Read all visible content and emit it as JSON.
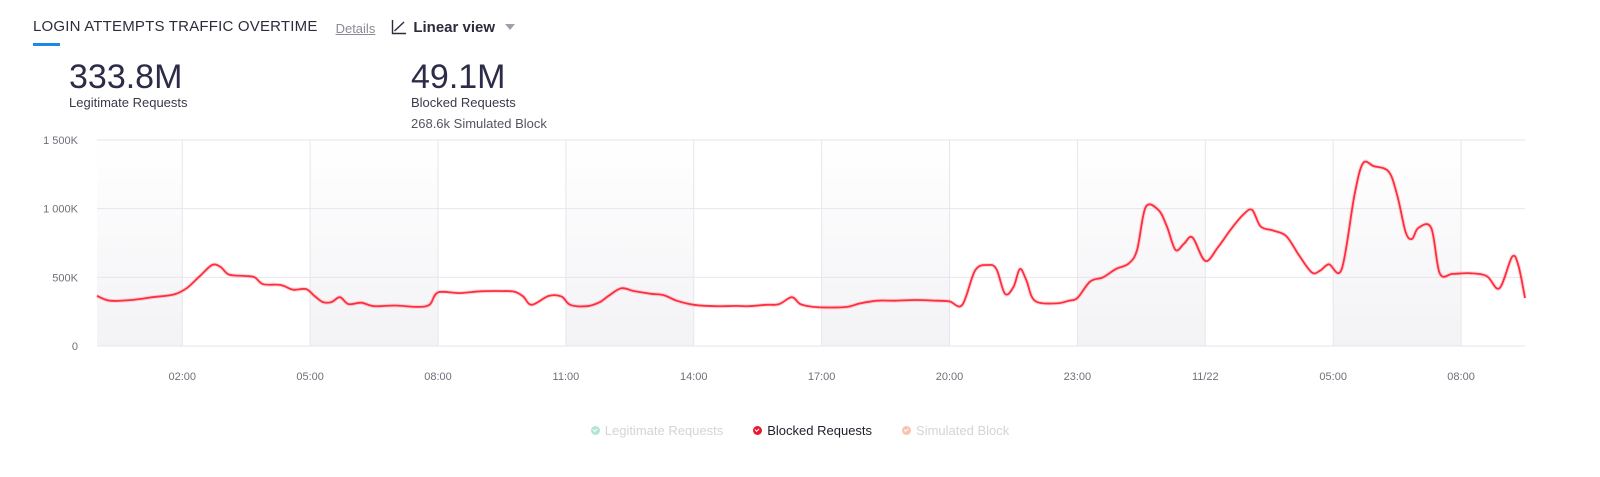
{
  "header": {
    "title": "LOGIN ATTEMPTS TRAFFIC OVERTIME",
    "details_label": "Details",
    "view_label": "Linear view",
    "view_icon": "line-chart-icon"
  },
  "stats": [
    {
      "value": "333.8M",
      "label": "Legitimate Requests",
      "sub": ""
    },
    {
      "value": "49.1M",
      "label": "Blocked Requests",
      "sub": "268.6k Simulated Block"
    }
  ],
  "legend": [
    {
      "label": "Legitimate Requests",
      "color": "#7dd8b5",
      "active": false
    },
    {
      "label": "Blocked Requests",
      "color": "#e8192c",
      "active": true
    },
    {
      "label": "Simulated Block",
      "color": "#f6a98a",
      "active": false
    }
  ],
  "colors": {
    "blocked": "#ff2d3d",
    "grid": "#e6e6ec",
    "shade": "#f3f3f6",
    "accent": "#1e88e5"
  },
  "chart_data": {
    "type": "line",
    "title": "LOGIN ATTEMPTS TRAFFIC OVERTIME",
    "xlabel": "",
    "ylabel": "",
    "ylim": [
      0,
      1500000
    ],
    "yticks": [
      0,
      500000,
      1000000,
      1500000
    ],
    "ytick_labels": [
      "0",
      "500K",
      "1 000K",
      "1 500K"
    ],
    "xlim": [
      0,
      33.5
    ],
    "x_unit": "hours since 00:00 (2-day window, 11/21 → 11/22)",
    "xticks": [
      2,
      5,
      8,
      11,
      14,
      17,
      20,
      23,
      26,
      29,
      32
    ],
    "xtick_labels": [
      "02:00",
      "05:00",
      "08:00",
      "11:00",
      "14:00",
      "17:00",
      "20:00",
      "23:00",
      "11/22",
      "05:00",
      "08:00"
    ],
    "grid": true,
    "legend_position": "bottom",
    "series": [
      {
        "name": "Blocked Requests",
        "color": "#ff2d3d",
        "points": [
          [
            0.0,
            365000
          ],
          [
            0.3,
            330000
          ],
          [
            0.8,
            335000
          ],
          [
            1.3,
            355000
          ],
          [
            1.8,
            375000
          ],
          [
            2.1,
            420000
          ],
          [
            2.4,
            505000
          ],
          [
            2.7,
            590000
          ],
          [
            2.9,
            575000
          ],
          [
            3.1,
            520000
          ],
          [
            3.5,
            510000
          ],
          [
            3.7,
            500000
          ],
          [
            3.9,
            450000
          ],
          [
            4.3,
            445000
          ],
          [
            4.6,
            410000
          ],
          [
            4.9,
            415000
          ],
          [
            5.1,
            365000
          ],
          [
            5.3,
            320000
          ],
          [
            5.5,
            320000
          ],
          [
            5.7,
            355000
          ],
          [
            5.9,
            305000
          ],
          [
            6.2,
            315000
          ],
          [
            6.5,
            290000
          ],
          [
            7.0,
            295000
          ],
          [
            7.5,
            285000
          ],
          [
            7.8,
            300000
          ],
          [
            8.0,
            390000
          ],
          [
            8.5,
            385000
          ],
          [
            9.0,
            398000
          ],
          [
            9.5,
            400000
          ],
          [
            9.8,
            395000
          ],
          [
            10.0,
            360000
          ],
          [
            10.2,
            300000
          ],
          [
            10.6,
            365000
          ],
          [
            10.9,
            360000
          ],
          [
            11.1,
            300000
          ],
          [
            11.5,
            290000
          ],
          [
            11.8,
            320000
          ],
          [
            12.0,
            365000
          ],
          [
            12.3,
            420000
          ],
          [
            12.6,
            400000
          ],
          [
            13.0,
            380000
          ],
          [
            13.3,
            370000
          ],
          [
            13.6,
            330000
          ],
          [
            14.0,
            300000
          ],
          [
            14.5,
            290000
          ],
          [
            15.0,
            292000
          ],
          [
            15.3,
            290000
          ],
          [
            15.7,
            300000
          ],
          [
            16.0,
            305000
          ],
          [
            16.3,
            355000
          ],
          [
            16.5,
            305000
          ],
          [
            16.8,
            285000
          ],
          [
            17.2,
            280000
          ],
          [
            17.6,
            285000
          ],
          [
            17.9,
            310000
          ],
          [
            18.3,
            330000
          ],
          [
            18.7,
            330000
          ],
          [
            19.2,
            335000
          ],
          [
            19.7,
            330000
          ],
          [
            20.0,
            325000
          ],
          [
            20.3,
            300000
          ],
          [
            20.6,
            550000
          ],
          [
            20.9,
            590000
          ],
          [
            21.1,
            560000
          ],
          [
            21.3,
            380000
          ],
          [
            21.5,
            430000
          ],
          [
            21.65,
            560000
          ],
          [
            21.8,
            480000
          ],
          [
            22.0,
            330000
          ],
          [
            22.5,
            310000
          ],
          [
            22.8,
            330000
          ],
          [
            23.0,
            350000
          ],
          [
            23.3,
            470000
          ],
          [
            23.6,
            500000
          ],
          [
            23.9,
            560000
          ],
          [
            24.2,
            600000
          ],
          [
            24.4,
            700000
          ],
          [
            24.6,
            1010000
          ],
          [
            24.9,
            990000
          ],
          [
            25.1,
            870000
          ],
          [
            25.3,
            700000
          ],
          [
            25.5,
            745000
          ],
          [
            25.7,
            790000
          ],
          [
            26.0,
            620000
          ],
          [
            26.3,
            720000
          ],
          [
            26.6,
            850000
          ],
          [
            26.9,
            960000
          ],
          [
            27.1,
            990000
          ],
          [
            27.3,
            870000
          ],
          [
            27.6,
            840000
          ],
          [
            27.9,
            800000
          ],
          [
            28.2,
            660000
          ],
          [
            28.5,
            535000
          ],
          [
            28.7,
            550000
          ],
          [
            28.9,
            595000
          ],
          [
            29.2,
            560000
          ],
          [
            29.5,
            1100000
          ],
          [
            29.7,
            1330000
          ],
          [
            29.95,
            1310000
          ],
          [
            30.3,
            1270000
          ],
          [
            30.5,
            1100000
          ],
          [
            30.7,
            830000
          ],
          [
            30.85,
            780000
          ],
          [
            31.0,
            860000
          ],
          [
            31.3,
            860000
          ],
          [
            31.5,
            530000
          ],
          [
            31.8,
            525000
          ],
          [
            32.2,
            530000
          ],
          [
            32.6,
            510000
          ],
          [
            32.9,
            420000
          ],
          [
            33.2,
            650000
          ],
          [
            33.35,
            580000
          ],
          [
            33.5,
            350000
          ]
        ]
      }
    ],
    "shaded_bands": [
      [
        0,
        2
      ],
      [
        5,
        8
      ],
      [
        11,
        14
      ],
      [
        17,
        20
      ],
      [
        23,
        26
      ],
      [
        29,
        32
      ]
    ]
  }
}
